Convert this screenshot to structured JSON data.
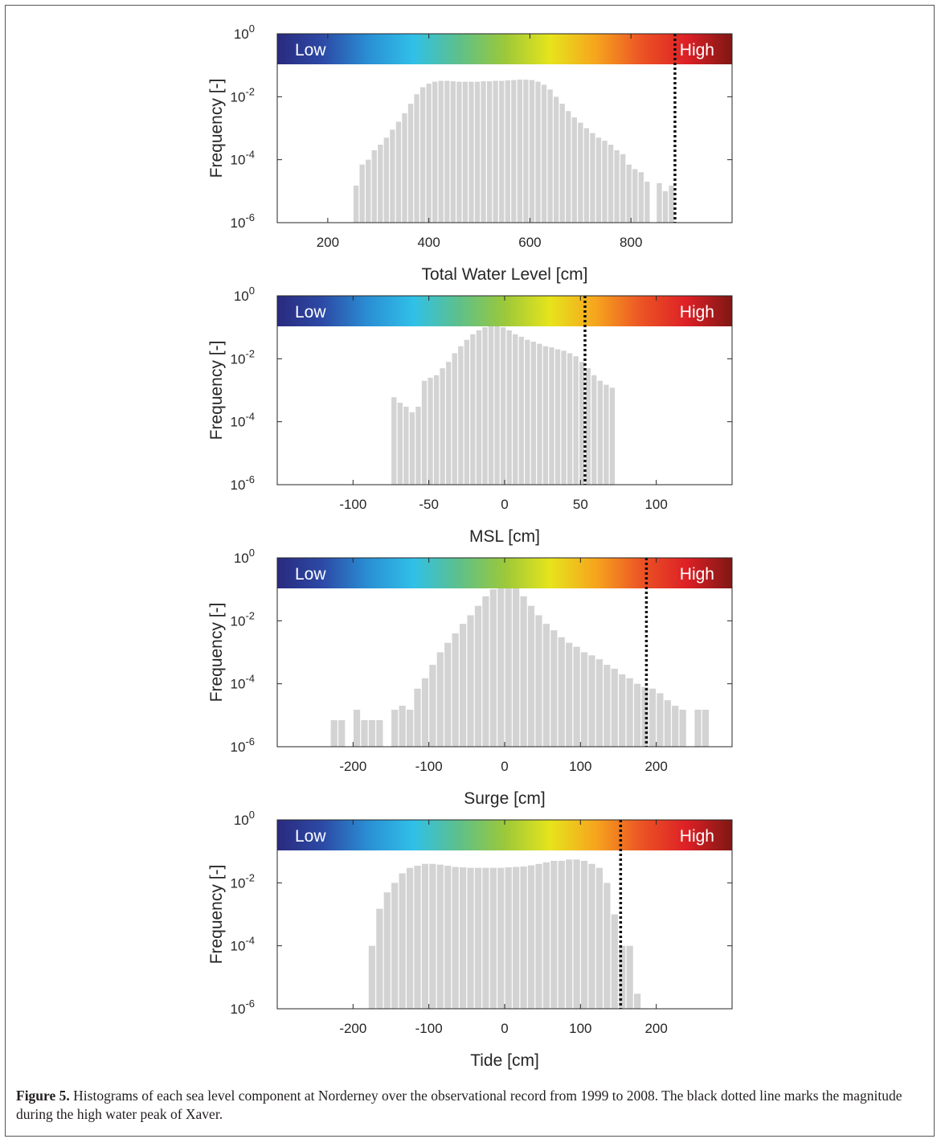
{
  "caption": {
    "label": "Figure 5.",
    "text": "Histograms of each sea level component at Norderney over the observational record from 1999 to 2008. The black dotted line marks the magnitude during the high water peak of Xaver."
  },
  "colors": {
    "bars": "#d3d3d3",
    "marker": "#111111",
    "colormap": [
      "#2a2a7e",
      "#2c4aa6",
      "#2a8fd4",
      "#30c0e8",
      "#5ec08a",
      "#9bc83a",
      "#e6e41c",
      "#f6a51e",
      "#ec5424",
      "#dd2026",
      "#7f1714"
    ]
  },
  "chart_data": [
    {
      "type": "bar",
      "xlabel": "Total Water Level [cm]",
      "ylabel": "Frequency [-]",
      "xlim": [
        100,
        1000
      ],
      "xticks": [
        200,
        400,
        600,
        800
      ],
      "yscale": "log",
      "ylim": [
        1e-06,
        1
      ],
      "yticks": [
        {
          "base": "10",
          "exp": "-6"
        },
        {
          "base": "10",
          "exp": "-4"
        },
        {
          "base": "10",
          "exp": "-2"
        },
        {
          "base": "10",
          "exp": "0"
        }
      ],
      "band_labels": {
        "low": "Low",
        "high": "High"
      },
      "marker_x": 887,
      "bin_width": 12,
      "x": [
        256,
        268,
        280,
        292,
        304,
        316,
        328,
        340,
        352,
        364,
        376,
        388,
        400,
        412,
        424,
        436,
        448,
        460,
        472,
        484,
        496,
        508,
        520,
        532,
        544,
        556,
        568,
        580,
        592,
        604,
        616,
        628,
        640,
        652,
        664,
        676,
        688,
        700,
        712,
        724,
        736,
        748,
        760,
        772,
        784,
        796,
        808,
        820,
        832,
        844,
        856,
        868,
        880
      ],
      "values": [
        1.5e-05,
        7e-05,
        0.0001,
        0.0002,
        0.0003,
        0.0005,
        0.0009,
        0.0016,
        0.003,
        0.006,
        0.012,
        0.02,
        0.026,
        0.03,
        0.032,
        0.032,
        0.031,
        0.03,
        0.03,
        0.03,
        0.03,
        0.031,
        0.031,
        0.032,
        0.032,
        0.033,
        0.034,
        0.035,
        0.035,
        0.034,
        0.03,
        0.024,
        0.017,
        0.01,
        0.006,
        0.0035,
        0.0022,
        0.0015,
        0.001,
        0.0007,
        0.0005,
        0.0004,
        0.0003,
        0.0002,
        0.00015,
        7e-05,
        5e-05,
        4e-05,
        2e-05,
        0,
        1.8e-05,
        1e-05,
        1.5e-05
      ]
    },
    {
      "type": "bar",
      "xlabel": "MSL [cm]",
      "ylabel": "Frequency [-]",
      "xlim": [
        -150,
        150
      ],
      "xticks": [
        -100,
        -50,
        0,
        50,
        100
      ],
      "yscale": "log",
      "ylim": [
        1e-06,
        1
      ],
      "yticks": [
        {
          "base": "10",
          "exp": "-6"
        },
        {
          "base": "10",
          "exp": "-4"
        },
        {
          "base": "10",
          "exp": "-2"
        },
        {
          "base": "10",
          "exp": "0"
        }
      ],
      "band_labels": {
        "low": "Low",
        "high": "High"
      },
      "marker_x": 53,
      "bin_width": 4,
      "x": [
        -73,
        -69,
        -65,
        -61,
        -57,
        -53,
        -49,
        -45,
        -41,
        -37,
        -33,
        -29,
        -25,
        -21,
        -17,
        -13,
        -9,
        -5,
        -1,
        3,
        7,
        11,
        15,
        19,
        23,
        27,
        31,
        35,
        39,
        43,
        47,
        51,
        55,
        59,
        63,
        67,
        71
      ],
      "values": [
        0.0006,
        0.0004,
        0.0003,
        0.0002,
        0.0003,
        0.002,
        0.0025,
        0.003,
        0.005,
        0.008,
        0.015,
        0.025,
        0.04,
        0.06,
        0.08,
        0.1,
        0.11,
        0.11,
        0.1,
        0.08,
        0.06,
        0.05,
        0.04,
        0.035,
        0.03,
        0.025,
        0.023,
        0.02,
        0.018,
        0.015,
        0.012,
        0.008,
        0.005,
        0.003,
        0.002,
        0.0015,
        0.0012
      ]
    },
    {
      "type": "bar",
      "xlabel": "Surge [cm]",
      "ylabel": "Frequency [-]",
      "xlim": [
        -300,
        300
      ],
      "xticks": [
        -200,
        -100,
        0,
        100,
        200
      ],
      "yscale": "log",
      "ylim": [
        1e-06,
        1
      ],
      "yticks": [
        {
          "base": "10",
          "exp": "-6"
        },
        {
          "base": "10",
          "exp": "-4"
        },
        {
          "base": "10",
          "exp": "-2"
        },
        {
          "base": "10",
          "exp": "0"
        }
      ],
      "band_labels": {
        "low": "Low",
        "high": "High"
      },
      "marker_x": 187,
      "bin_width": 10,
      "x": [
        -225,
        -215,
        -205,
        -195,
        -185,
        -175,
        -165,
        -155,
        -145,
        -135,
        -125,
        -115,
        -105,
        -95,
        -85,
        -75,
        -65,
        -55,
        -45,
        -35,
        -25,
        -15,
        -5,
        5,
        15,
        25,
        35,
        45,
        55,
        65,
        75,
        85,
        95,
        105,
        115,
        125,
        135,
        145,
        155,
        165,
        175,
        185,
        195,
        205,
        215,
        225,
        235,
        245,
        255,
        265
      ],
      "values": [
        7e-06,
        7e-06,
        0,
        1.5e-05,
        7e-06,
        7e-06,
        7e-06,
        0,
        1.5e-05,
        2e-05,
        1.5e-05,
        7e-05,
        0.00015,
        0.0004,
        0.001,
        0.002,
        0.004,
        0.008,
        0.015,
        0.03,
        0.06,
        0.1,
        0.2,
        0.18,
        0.12,
        0.06,
        0.03,
        0.015,
        0.008,
        0.005,
        0.003,
        0.002,
        0.0015,
        0.001,
        0.0008,
        0.0006,
        0.0004,
        0.0003,
        0.0002,
        0.00015,
        0.0001,
        8e-05,
        7e-05,
        5e-05,
        3e-05,
        2e-05,
        1.5e-05,
        0,
        1.5e-05,
        1.5e-05
      ]
    },
    {
      "type": "bar",
      "xlabel": "Tide [cm]",
      "ylabel": "Frequency [-]",
      "xlim": [
        -300,
        300
      ],
      "xticks": [
        -200,
        -100,
        0,
        100,
        200
      ],
      "yscale": "log",
      "ylim": [
        1e-06,
        1
      ],
      "yticks": [
        {
          "base": "10",
          "exp": "-6"
        },
        {
          "base": "10",
          "exp": "-4"
        },
        {
          "base": "10",
          "exp": "-2"
        },
        {
          "base": "10",
          "exp": "0"
        }
      ],
      "band_labels": {
        "low": "Low",
        "high": "High"
      },
      "marker_x": 153,
      "bin_width": 10,
      "x": [
        -175,
        -165,
        -155,
        -145,
        -135,
        -125,
        -115,
        -105,
        -95,
        -85,
        -75,
        -65,
        -55,
        -45,
        -35,
        -25,
        -15,
        -5,
        5,
        15,
        25,
        35,
        45,
        55,
        65,
        75,
        85,
        95,
        105,
        115,
        125,
        135,
        145,
        155,
        165,
        175
      ],
      "values": [
        0.0001,
        0.0015,
        0.005,
        0.01,
        0.02,
        0.03,
        0.035,
        0.04,
        0.04,
        0.038,
        0.035,
        0.032,
        0.031,
        0.03,
        0.03,
        0.03,
        0.03,
        0.03,
        0.031,
        0.032,
        0.033,
        0.036,
        0.04,
        0.045,
        0.05,
        0.05,
        0.055,
        0.055,
        0.05,
        0.04,
        0.03,
        0.01,
        0.001,
        0.0001,
        0.0001,
        3e-06
      ]
    }
  ]
}
